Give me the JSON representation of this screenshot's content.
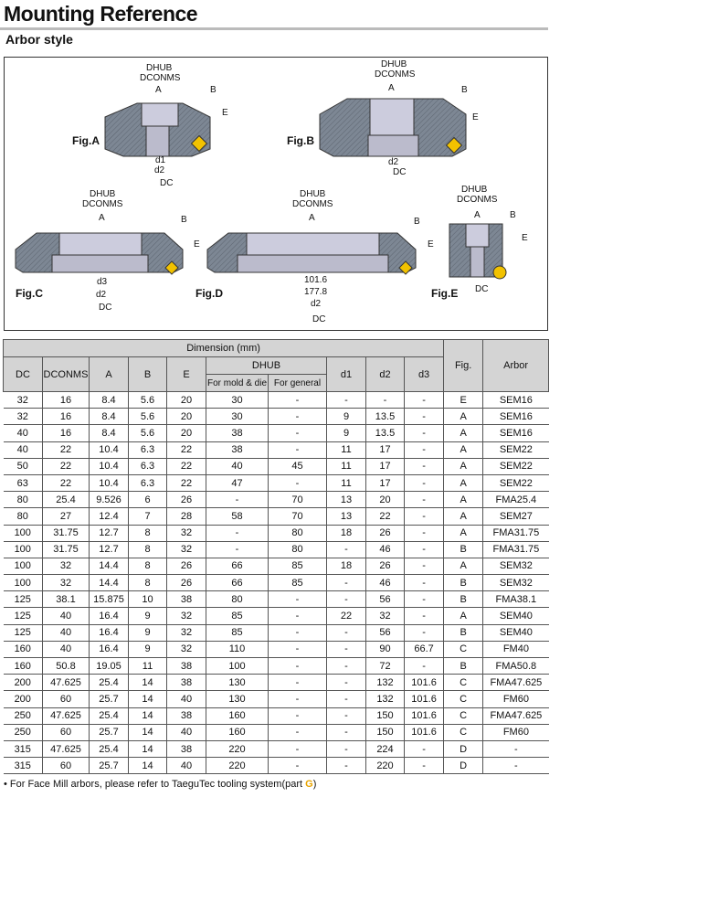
{
  "header": {
    "title": "Mounting Reference",
    "subtitle": "Arbor style"
  },
  "figures": {
    "labels": {
      "a": "Fig.A",
      "b": "Fig.B",
      "c": "Fig.C",
      "d": "Fig.D",
      "e": "Fig.E"
    },
    "dims": {
      "dhub": "DHUB",
      "dconms": "DCONMS",
      "a": "A",
      "b": "B",
      "e": "E",
      "d1": "d1",
      "d2": "d2",
      "d3": "d3",
      "dc": "DC",
      "v1016": "101.6",
      "v1778": "177.8"
    }
  },
  "table": {
    "group_header": "Dimension (mm)",
    "headers": {
      "dc": "DC",
      "dconms": "DCONMS",
      "a": "A",
      "b": "B",
      "e": "E",
      "dhub": "DHUB",
      "mold": "For mold & die",
      "general": "For general",
      "d1": "d1",
      "d2": "d2",
      "d3": "d3",
      "fig": "Fig.",
      "arbor": "Arbor"
    },
    "rows": [
      [
        "32",
        "16",
        "8.4",
        "5.6",
        "20",
        "30",
        "-",
        "-",
        "-",
        "-",
        "E",
        "SEM16"
      ],
      [
        "32",
        "16",
        "8.4",
        "5.6",
        "20",
        "30",
        "-",
        "9",
        "13.5",
        "-",
        "A",
        "SEM16"
      ],
      [
        "40",
        "16",
        "8.4",
        "5.6",
        "20",
        "38",
        "-",
        "9",
        "13.5",
        "-",
        "A",
        "SEM16"
      ],
      [
        "40",
        "22",
        "10.4",
        "6.3",
        "22",
        "38",
        "-",
        "11",
        "17",
        "-",
        "A",
        "SEM22"
      ],
      [
        "50",
        "22",
        "10.4",
        "6.3",
        "22",
        "40",
        "45",
        "11",
        "17",
        "-",
        "A",
        "SEM22"
      ],
      [
        "63",
        "22",
        "10.4",
        "6.3",
        "22",
        "47",
        "-",
        "11",
        "17",
        "-",
        "A",
        "SEM22"
      ],
      [
        "80",
        "25.4",
        "9.526",
        "6",
        "26",
        "-",
        "70",
        "13",
        "20",
        "-",
        "A",
        "FMA25.4"
      ],
      [
        "80",
        "27",
        "12.4",
        "7",
        "28",
        "58",
        "70",
        "13",
        "22",
        "-",
        "A",
        "SEM27"
      ],
      [
        "100",
        "31.75",
        "12.7",
        "8",
        "32",
        "-",
        "80",
        "18",
        "26",
        "-",
        "A",
        "FMA31.75"
      ],
      [
        "100",
        "31.75",
        "12.7",
        "8",
        "32",
        "-",
        "80",
        "-",
        "46",
        "-",
        "B",
        "FMA31.75"
      ],
      [
        "100",
        "32",
        "14.4",
        "8",
        "26",
        "66",
        "85",
        "18",
        "26",
        "-",
        "A",
        "SEM32"
      ],
      [
        "100",
        "32",
        "14.4",
        "8",
        "26",
        "66",
        "85",
        "-",
        "46",
        "-",
        "B",
        "SEM32"
      ],
      [
        "125",
        "38.1",
        "15.875",
        "10",
        "38",
        "80",
        "-",
        "-",
        "56",
        "-",
        "B",
        "FMA38.1"
      ],
      [
        "125",
        "40",
        "16.4",
        "9",
        "32",
        "85",
        "-",
        "22",
        "32",
        "-",
        "A",
        "SEM40"
      ],
      [
        "125",
        "40",
        "16.4",
        "9",
        "32",
        "85",
        "-",
        "-",
        "56",
        "-",
        "B",
        "SEM40"
      ],
      [
        "160",
        "40",
        "16.4",
        "9",
        "32",
        "110",
        "-",
        "-",
        "90",
        "66.7",
        "C",
        "FM40"
      ],
      [
        "160",
        "50.8",
        "19.05",
        "11",
        "38",
        "100",
        "-",
        "-",
        "72",
        "-",
        "B",
        "FMA50.8"
      ],
      [
        "200",
        "47.625",
        "25.4",
        "14",
        "38",
        "130",
        "-",
        "-",
        "132",
        "101.6",
        "C",
        "FMA47.625"
      ],
      [
        "200",
        "60",
        "25.7",
        "14",
        "40",
        "130",
        "-",
        "-",
        "132",
        "101.6",
        "C",
        "FM60"
      ],
      [
        "250",
        "47.625",
        "25.4",
        "14",
        "38",
        "160",
        "-",
        "-",
        "150",
        "101.6",
        "C",
        "FMA47.625"
      ],
      [
        "250",
        "60",
        "25.7",
        "14",
        "40",
        "160",
        "-",
        "-",
        "150",
        "101.6",
        "C",
        "FM60"
      ],
      [
        "315",
        "47.625",
        "25.4",
        "14",
        "38",
        "220",
        "-",
        "-",
        "224",
        "-",
        "D",
        "-"
      ],
      [
        "315",
        "60",
        "25.7",
        "14",
        "40",
        "220",
        "-",
        "-",
        "220",
        "-",
        "D",
        "-"
      ]
    ]
  },
  "note": {
    "text": "• For Face Mill arbors, please refer to TaeguTec tooling system(part ",
    "part": "G",
    "close": ")"
  },
  "colors": {
    "body": "#7d8794",
    "insert": "#f2c200",
    "header_bg": "#d4d4d4"
  }
}
